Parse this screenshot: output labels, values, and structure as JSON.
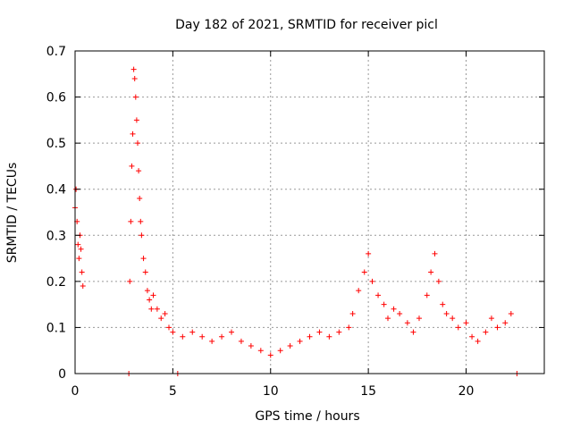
{
  "chart_data": {
    "type": "scatter",
    "title": "Day 182 of 2021, SRMTID for receiver picl",
    "xlabel": "GPS time / hours",
    "ylabel": "SRMTID / TECUs",
    "xlim": [
      0,
      24
    ],
    "ylim": [
      0,
      0.7
    ],
    "x_ticks": [
      0,
      5,
      10,
      15,
      20
    ],
    "y_ticks": [
      0,
      0.1,
      0.2,
      0.3,
      0.4,
      0.5,
      0.6,
      0.7
    ],
    "y_tick_labels": [
      "0",
      "0.1",
      "0.2",
      "0.3",
      "0.4",
      "0.5",
      "0.6",
      "0.7"
    ],
    "grid": true,
    "marker": "+",
    "color": "#ff0000",
    "series": [
      {
        "name": "SRMTID",
        "x": [
          0.0,
          0.05,
          0.1,
          0.15,
          0.2,
          0.25,
          0.3,
          0.35,
          0.4,
          2.75,
          5.25,
          22.6,
          2.8,
          2.85,
          2.9,
          2.95,
          3.0,
          3.05,
          3.1,
          3.15,
          3.2,
          3.25,
          3.3,
          3.35,
          3.4,
          3.5,
          3.6,
          3.7,
          3.8,
          3.9,
          4.0,
          4.2,
          4.4,
          4.6,
          4.8,
          5.0,
          5.5,
          6.0,
          6.5,
          7.0,
          7.5,
          8.0,
          8.5,
          9.0,
          9.5,
          10.0,
          10.5,
          11.0,
          11.5,
          12.0,
          12.5,
          13.0,
          13.5,
          14.0,
          14.2,
          14.5,
          14.8,
          15.0,
          15.2,
          15.5,
          15.8,
          16.0,
          16.3,
          16.6,
          17.0,
          17.3,
          17.6,
          18.0,
          18.2,
          18.4,
          18.6,
          18.8,
          19.0,
          19.3,
          19.6,
          20.0,
          20.3,
          20.6,
          21.0,
          21.3,
          21.6,
          22.0,
          22.3
        ],
        "y": [
          0.36,
          0.4,
          0.33,
          0.28,
          0.25,
          0.3,
          0.27,
          0.22,
          0.19,
          0.0,
          0.0,
          0.0,
          0.2,
          0.33,
          0.45,
          0.52,
          0.66,
          0.64,
          0.6,
          0.55,
          0.5,
          0.44,
          0.38,
          0.33,
          0.3,
          0.25,
          0.22,
          0.18,
          0.16,
          0.14,
          0.17,
          0.14,
          0.12,
          0.13,
          0.1,
          0.09,
          0.08,
          0.09,
          0.08,
          0.07,
          0.08,
          0.09,
          0.07,
          0.06,
          0.05,
          0.04,
          0.05,
          0.06,
          0.07,
          0.08,
          0.09,
          0.08,
          0.09,
          0.1,
          0.13,
          0.18,
          0.22,
          0.26,
          0.2,
          0.17,
          0.15,
          0.12,
          0.14,
          0.13,
          0.11,
          0.09,
          0.12,
          0.17,
          0.22,
          0.26,
          0.2,
          0.15,
          0.13,
          0.12,
          0.1,
          0.11,
          0.08,
          0.07,
          0.09,
          0.12,
          0.1,
          0.11,
          0.13
        ]
      }
    ]
  }
}
